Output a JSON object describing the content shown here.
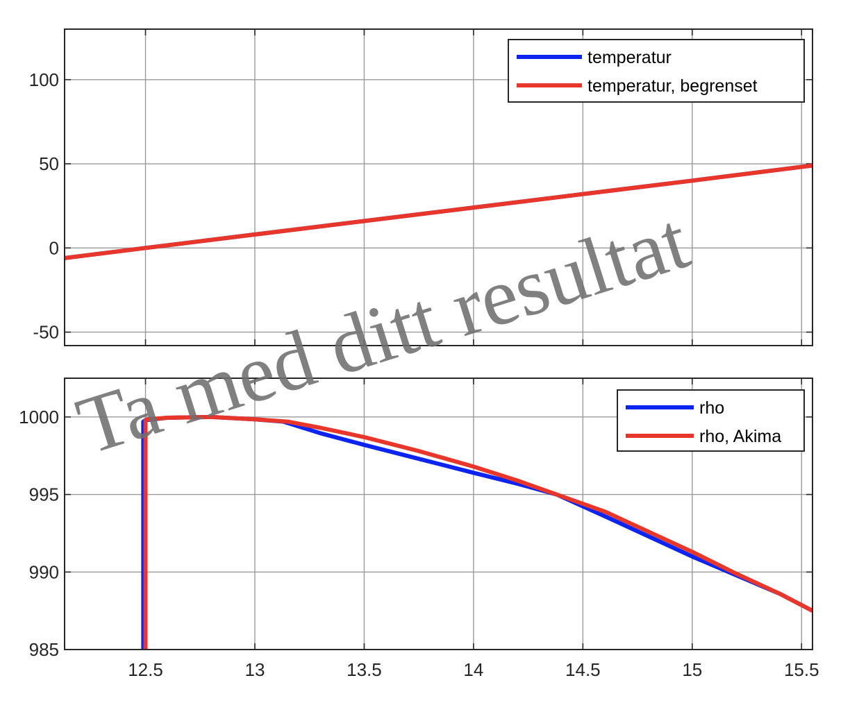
{
  "watermark": "Ta med ditt resultat",
  "colors": {
    "blue": "#0b24f0",
    "red": "#e8372a"
  },
  "chart_data": [
    {
      "type": "line",
      "title": "",
      "xlabel": "",
      "ylabel": "",
      "xlim": [
        12.13,
        15.55
      ],
      "ylim": [
        -58,
        130
      ],
      "xticks": [
        12.5,
        13,
        13.5,
        14,
        14.5,
        15,
        15.5
      ],
      "yticks": [
        -50,
        0,
        50,
        100
      ],
      "ytick_labels": [
        "-50",
        "0",
        "50",
        "100"
      ],
      "grid": true,
      "legend_position": "top-right",
      "series": [
        {
          "name": "temperatur",
          "color": "#0b24f0",
          "x": [
            12.13,
            12.5,
            13.0,
            13.5,
            14.0,
            14.5,
            15.0,
            15.55
          ],
          "y": [
            -6,
            0,
            8,
            16,
            24,
            32,
            40,
            49
          ]
        },
        {
          "name": "temperatur, begrenset",
          "color": "#e8372a",
          "x": [
            12.13,
            12.5,
            13.0,
            13.5,
            14.0,
            14.5,
            15.0,
            15.55
          ],
          "y": [
            -6,
            0,
            8,
            16,
            24,
            32,
            40,
            49
          ]
        }
      ]
    },
    {
      "type": "line",
      "title": "",
      "xlabel": "",
      "ylabel": "",
      "xlim": [
        12.13,
        15.55
      ],
      "ylim": [
        985,
        1002.5
      ],
      "xticks": [
        12.5,
        13,
        13.5,
        14,
        14.5,
        15,
        15.5
      ],
      "xtick_labels": [
        "12.5",
        "13",
        "13.5",
        "14",
        "14.5",
        "15",
        "15.5"
      ],
      "yticks": [
        985,
        990,
        995,
        1000
      ],
      "ytick_labels": [
        "985",
        "990",
        "995",
        "1000"
      ],
      "grid": true,
      "legend_position": "top-right",
      "series": [
        {
          "name": "rho",
          "color": "#0b24f0",
          "x": [
            12.49,
            12.49,
            12.5,
            12.6,
            12.8,
            13.0,
            13.13,
            13.3,
            13.5,
            13.75,
            14.0,
            14.2,
            14.38,
            14.6,
            14.8,
            15.0,
            15.2,
            15.4,
            15.55
          ],
          "y": [
            985,
            999.7,
            999.8,
            999.95,
            1000.0,
            999.85,
            999.7,
            998.95,
            998.2,
            997.3,
            996.4,
            995.7,
            995.0,
            993.6,
            992.3,
            991.0,
            989.8,
            988.6,
            987.5
          ]
        },
        {
          "name": "rho, Akima",
          "color": "#e8372a",
          "x": [
            12.5,
            12.5,
            12.51,
            12.6,
            12.8,
            13.0,
            13.15,
            13.3,
            13.5,
            13.75,
            14.0,
            14.2,
            14.38,
            14.6,
            14.8,
            15.0,
            15.2,
            15.4,
            15.55
          ],
          "y": [
            985,
            999.8,
            999.85,
            999.95,
            1000.0,
            999.85,
            999.7,
            999.3,
            998.7,
            997.8,
            996.8,
            995.9,
            995.0,
            993.9,
            992.6,
            991.3,
            989.9,
            988.6,
            987.5
          ]
        }
      ]
    }
  ]
}
